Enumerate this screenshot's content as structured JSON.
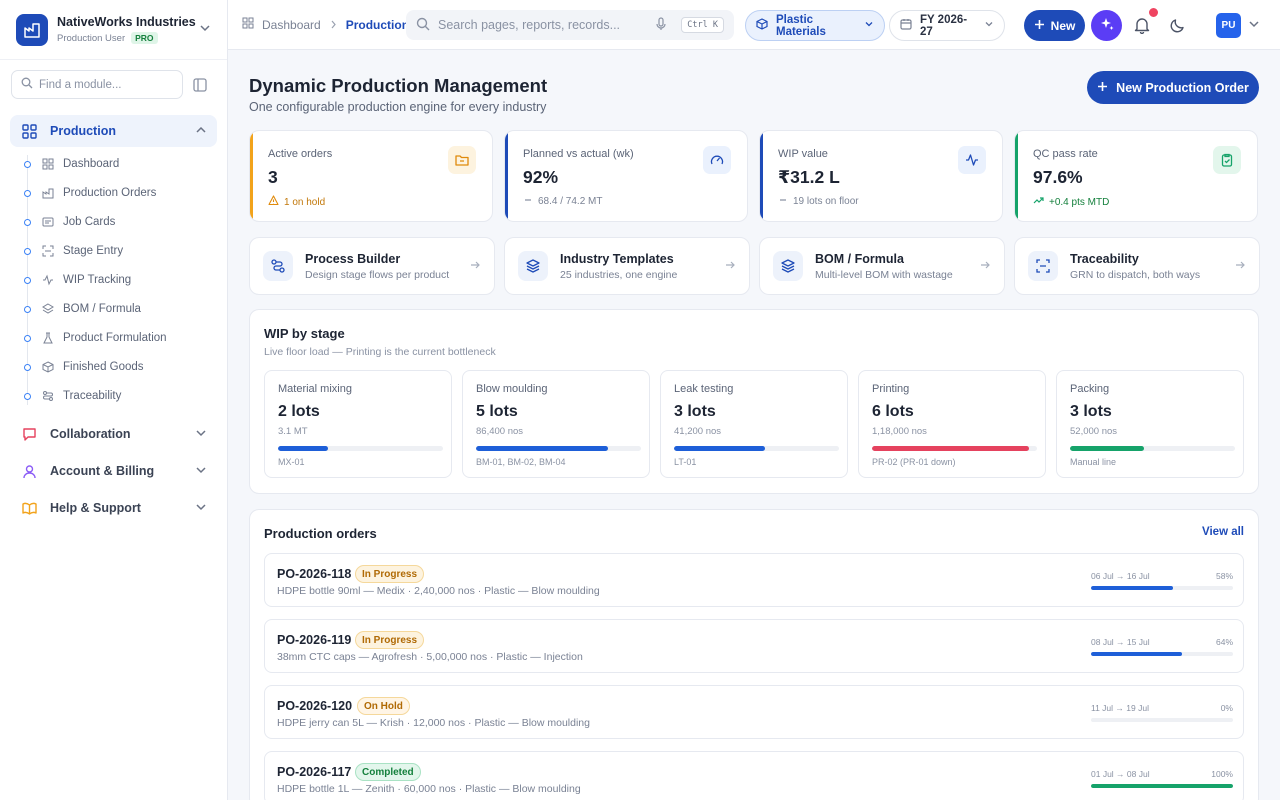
{
  "brand": {
    "name": "NativeWorks Industries",
    "role": "Production User",
    "badge": "PRO"
  },
  "sidebar": {
    "search_placeholder": "Find a module...",
    "sections": [
      {
        "label": "Production",
        "icon": "grid-icon",
        "active": true,
        "expanded": true
      },
      {
        "label": "Collaboration",
        "icon": "chat-icon",
        "active": false,
        "expanded": false
      },
      {
        "label": "Account & Billing",
        "icon": "user-icon",
        "active": false,
        "expanded": false
      },
      {
        "label": "Help & Support",
        "icon": "book-icon",
        "active": false,
        "expanded": false
      }
    ],
    "production_items": [
      {
        "label": "Dashboard",
        "icon": "grid-icon"
      },
      {
        "label": "Production Orders",
        "icon": "factory-icon"
      },
      {
        "label": "Job Cards",
        "icon": "card-icon"
      },
      {
        "label": "Stage Entry",
        "icon": "scan-icon"
      },
      {
        "label": "WIP Tracking",
        "icon": "activity-icon"
      },
      {
        "label": "BOM / Formula",
        "icon": "layers-icon"
      },
      {
        "label": "Product Formulation",
        "icon": "flask-icon"
      },
      {
        "label": "Finished Goods",
        "icon": "box-icon"
      },
      {
        "label": "Traceability",
        "icon": "route-icon"
      }
    ]
  },
  "topbar": {
    "breadcrumb": [
      "Dashboard",
      "Production"
    ],
    "search_placeholder": "Search pages, reports, records...",
    "shortcut": "Ctrl K",
    "material": "Plastic Materials",
    "fiscal_year": "FY 2026-27",
    "new_label": "New",
    "avatar": "PU"
  },
  "page": {
    "title": "Dynamic Production Management",
    "subtitle": "One configurable production engine for every industry",
    "new_order_label": "New Production Order"
  },
  "kpis": [
    {
      "label": "Active orders",
      "value": "3",
      "note": "1 on hold",
      "note_icon": "warning-icon",
      "accent": "#f2a31b",
      "icon": "folder-icon"
    },
    {
      "label": "Planned vs actual (wk)",
      "value": "92%",
      "note": "68.4 / 74.2 MT",
      "note_icon": "dash-icon",
      "accent": "#1e4bb8",
      "icon": "gauge-icon"
    },
    {
      "label": "WIP value",
      "value": "₹31.2 L",
      "note": "19 lots on floor",
      "note_icon": "dash-icon",
      "accent": "#1e4bb8",
      "icon": "activity-icon"
    },
    {
      "label": "QC pass rate",
      "value": "97.6%",
      "note": "+0.4 pts MTD",
      "note_icon": "trend-up-icon",
      "accent": "#16a36a",
      "icon": "clipboard-check-icon"
    }
  ],
  "quick_actions": [
    {
      "title": "Process Builder",
      "subtitle": "Design stage flows per product",
      "icon": "flow-icon"
    },
    {
      "title": "Industry Templates",
      "subtitle": "25 industries, one engine",
      "icon": "stack-icon"
    },
    {
      "title": "BOM / Formula",
      "subtitle": "Multi-level BOM with wastage",
      "icon": "stack-icon"
    },
    {
      "title": "Traceability",
      "subtitle": "GRN to dispatch, both ways",
      "icon": "scan-icon"
    }
  ],
  "wip": {
    "title": "WIP by stage",
    "subtitle": "Live floor load — Printing is the current bottleneck",
    "stages": [
      {
        "name": "Material mixing",
        "lots": "2 lots",
        "qty": "3.1 MT",
        "lines": "MX-01",
        "load": 0.3,
        "color": "#1e5fd8"
      },
      {
        "name": "Blow moulding",
        "lots": "5 lots",
        "qty": "86,400 nos",
        "lines": "BM-01, BM-02, BM-04",
        "load": 0.8,
        "color": "#1e5fd8"
      },
      {
        "name": "Leak testing",
        "lots": "3 lots",
        "qty": "41,200 nos",
        "lines": "LT-01",
        "load": 0.55,
        "color": "#1e5fd8"
      },
      {
        "name": "Printing",
        "lots": "6 lots",
        "qty": "1,18,000 nos",
        "lines": "PR-02 (PR-01 down)",
        "load": 0.95,
        "color": "#e5425e"
      },
      {
        "name": "Packing",
        "lots": "3 lots",
        "qty": "52,000 nos",
        "lines": "Manual line",
        "load": 0.45,
        "color": "#16a36a"
      }
    ]
  },
  "orders": {
    "title": "Production orders",
    "view_all": "View all",
    "items": [
      {
        "id": "PO-2026-118",
        "status": "In Progress",
        "desc": "HDPE bottle 90ml — Medix · 2,40,000 nos · Plastic — Blow moulding",
        "dates": "06 Jul → 16 Jul",
        "pct_label": "58%",
        "progress": 0.58,
        "fill": "#1e5fd8"
      },
      {
        "id": "PO-2026-119",
        "status": "In Progress",
        "desc": "38mm CTC caps — Agrofresh · 5,00,000 nos · Plastic — Injection",
        "dates": "08 Jul → 15 Jul",
        "pct_label": "64%",
        "progress": 0.64,
        "fill": "#1e5fd8"
      },
      {
        "id": "PO-2026-120",
        "status": "On Hold",
        "desc": "HDPE jerry can 5L — Krish · 12,000 nos · Plastic — Blow moulding",
        "dates": "11 Jul → 19 Jul",
        "pct_label": "0%",
        "progress": 0,
        "fill": "#1e5fd8"
      },
      {
        "id": "PO-2026-117",
        "status": "Completed",
        "desc": "HDPE bottle 1L — Zenith · 60,000 nos · Plastic — Blow moulding",
        "dates": "01 Jul → 08 Jul",
        "pct_label": "100%",
        "progress": 1.0,
        "fill": "#16a36a"
      }
    ]
  },
  "colors": {
    "primary": "#1e4bb8",
    "ai": "#5b3df5",
    "alert": "#ef4461",
    "success": "#16a36a",
    "warning": "#f2a31b"
  }
}
